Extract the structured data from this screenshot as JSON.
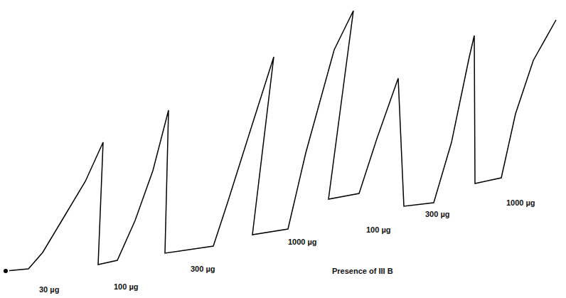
{
  "chart_data": {
    "type": "line",
    "annotations": [
      "30 µg",
      "100 µg",
      "300 µg",
      "1000 µg",
      "100 µg",
      "300 µg",
      "1000 µg",
      "Presence of III B"
    ],
    "x": [
      8,
      40,
      60,
      90,
      120,
      145,
      138,
      165,
      190,
      215,
      237,
      232,
      300,
      320,
      350,
      385,
      355,
      405,
      430,
      470,
      497,
      462,
      505,
      530,
      560,
      568,
      610,
      635,
      660,
      667,
      668,
      705,
      725,
      750,
      782
    ],
    "values": [
      38,
      41,
      64,
      114,
      164,
      219,
      47,
      53,
      109,
      179,
      264,
      63,
      73,
      134,
      229,
      339,
      89,
      97,
      204,
      349,
      404,
      139,
      147,
      224,
      309,
      129,
      134,
      219,
      339,
      369,
      161,
      169,
      259,
      334,
      391
    ],
    "color": "#000000",
    "xlim": [
      0,
      796
    ],
    "ylim": [
      0,
      419
    ],
    "tick_labels": false,
    "grid": false
  }
}
